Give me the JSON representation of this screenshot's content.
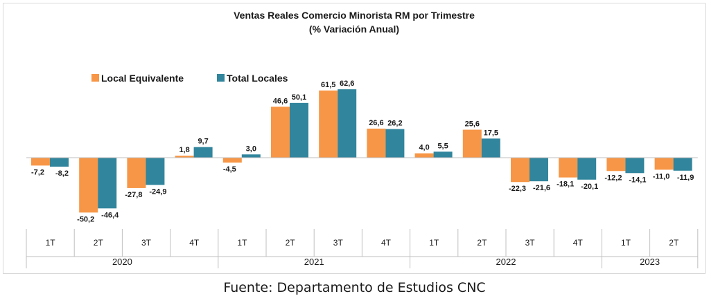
{
  "chart_data": {
    "type": "bar",
    "title": "Ventas Reales Comercio Minorista RM por Trimestre",
    "subtitle": "(% Variación Anual)",
    "categories": [
      "1T",
      "2T",
      "3T",
      "4T",
      "1T",
      "2T",
      "3T",
      "4T",
      "1T",
      "2T",
      "3T",
      "4T",
      "1T",
      "2T"
    ],
    "groups": [
      {
        "label": "2020",
        "count": 4
      },
      {
        "label": "2021",
        "count": 4
      },
      {
        "label": "2022",
        "count": 4
      },
      {
        "label": "2023",
        "count": 2
      }
    ],
    "series": [
      {
        "name": "Local Equivalente",
        "color": "#f79646",
        "values": [
          -7.2,
          -50.2,
          -27.8,
          1.8,
          -4.5,
          46.6,
          61.5,
          26.6,
          4.0,
          25.6,
          -22.3,
          -18.1,
          -12.2,
          -11.0
        ],
        "labels": [
          "-7,2",
          "-50,2",
          "-27,8",
          "1,8",
          "-4,5",
          "46,6",
          "61,5",
          "26,6",
          "4,0",
          "25,6",
          "-22,3",
          "-18,1",
          "-12,2",
          "-11,0"
        ]
      },
      {
        "name": "Total Locales",
        "color": "#31859c",
        "values": [
          -8.2,
          -46.4,
          -24.9,
          9.7,
          3.0,
          50.1,
          62.6,
          26.2,
          5.5,
          17.5,
          -21.6,
          -20.1,
          -14.1,
          -11.9
        ],
        "labels": [
          "-8,2",
          "-46,4",
          "-24,9",
          "9,7",
          "3,0",
          "50,1",
          "62,6",
          "26,2",
          "5,5",
          "17,5",
          "-21,6",
          "-20,1",
          "-14,1",
          "-11,9"
        ]
      }
    ],
    "legend_position": "top-left",
    "grid": false
  },
  "source_note": "Fuente: Departamento de Estudios CNC"
}
